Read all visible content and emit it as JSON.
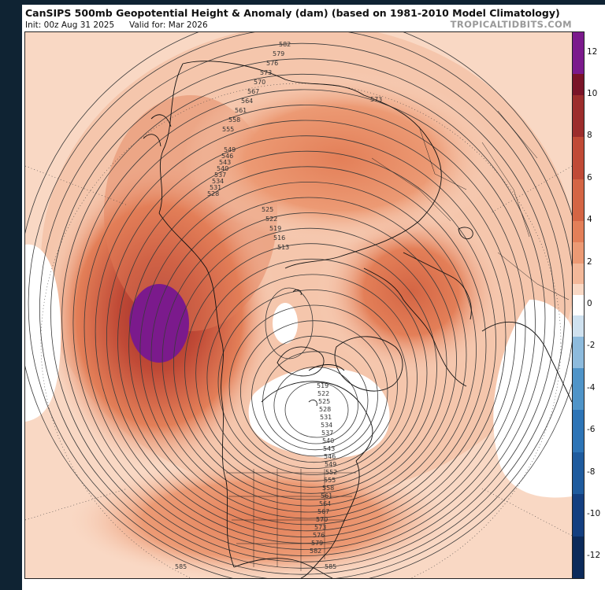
{
  "header": {
    "title": "CanSIPS 500mb Geopotential Height & Anomaly (dam) (based on 1981-2010 Model Climatology)",
    "init": "Init: 00z Aug 31 2025",
    "valid": "Valid for: Mar 2026",
    "credit": "TROPICALTIDBITS.COM"
  },
  "colorbar": {
    "unit": "dam",
    "range": [
      -13,
      13
    ],
    "ticks": [
      "12",
      "10",
      "8",
      "6",
      "4",
      "2",
      "0",
      "-2",
      "-4",
      "-6",
      "-8",
      "-10",
      "-12"
    ],
    "colors": {
      "neg12": "#0c2a5a",
      "neg10": "#143f80",
      "neg8": "#1f5b9e",
      "neg6": "#2d74b6",
      "neg4": "#4f94c8",
      "neg2": "#8dbbdd",
      "neg1": "#cfe1ef",
      "zero": "#ffffff",
      "pos1": "#f9d8c4",
      "pos2": "#f3b899",
      "pos3": "#ec9a74",
      "pos4": "#e37f58",
      "pos6": "#d46544",
      "pos8": "#c04a36",
      "pos10": "#9c2d2c",
      "pos12": "#7a1428",
      "max": "#7b1a8c"
    }
  },
  "contour_labels": {
    "outer_top": [
      "582",
      "579",
      "576",
      "573",
      "570",
      "567",
      "564",
      "561",
      "558",
      "555"
    ],
    "asia_side": [
      "573"
    ],
    "pacific_side": [
      "549",
      "546",
      "543",
      "540",
      "537",
      "534",
      "531",
      "528"
    ],
    "center": [
      "525",
      "522",
      "519",
      "516",
      "513"
    ],
    "america_side": [
      "519",
      "522",
      "525",
      "528",
      "531",
      "534",
      "537",
      "540",
      "543",
      "546",
      "549",
      "552",
      "555",
      "558",
      "561",
      "564",
      "567",
      "570",
      "573",
      "576",
      "579",
      "582"
    ],
    "bottom": [
      "585",
      "585"
    ]
  }
}
